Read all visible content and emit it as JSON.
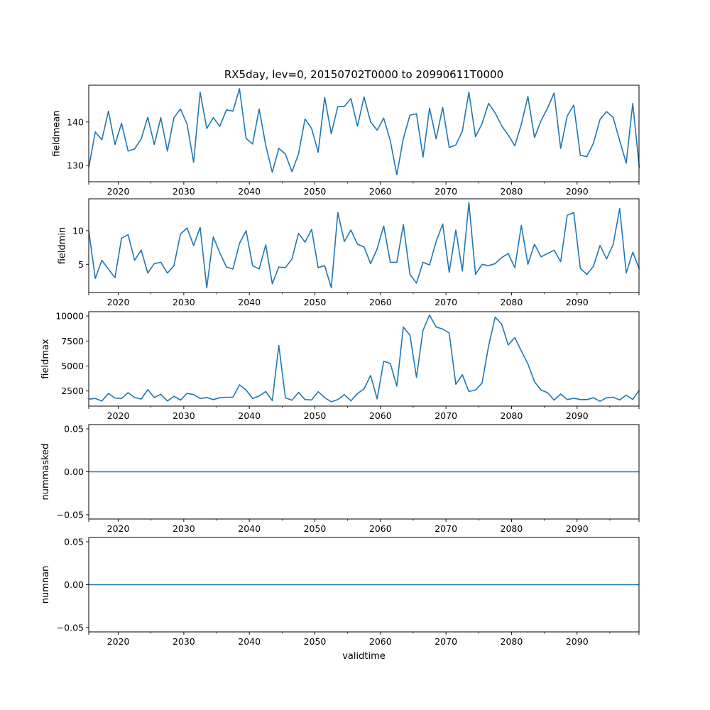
{
  "title": "RX5day, lev=0, 20150702T0000 to 20990611T0000",
  "chart_data": {
    "type": "line",
    "title": "RX5day, lev=0, 20150702T0000 to 20990611T0000",
    "xlabel": "validtime",
    "x_start_year": 2015.5,
    "x_step_years": 1,
    "xlim": [
      2015.5,
      2099.45
    ],
    "xticks": [
      2020,
      2030,
      2040,
      2050,
      2060,
      2070,
      2080,
      2090
    ],
    "xtick_labels": [
      "2020",
      "2030",
      "2040",
      "2050",
      "2060",
      "2070",
      "2080",
      "2090"
    ],
    "x_minor_ticks": [
      2025,
      2035,
      2045,
      2055,
      2065,
      2075,
      2085,
      2095
    ],
    "line_color": "#1f77b4",
    "panels": [
      {
        "ylabel": "fieldmean",
        "ylim": [
          126.2,
          148.5
        ],
        "yticks": [
          130,
          140
        ],
        "ytick_labels": [
          "130",
          "140"
        ],
        "values": [
          129.5,
          137.7,
          135.9,
          142.5,
          134.8,
          139.7,
          133.3,
          133.8,
          136.1,
          141.1,
          134.8,
          141.0,
          133.3,
          141.0,
          143.0,
          139.5,
          130.7,
          146.9,
          138.5,
          141.0,
          139.0,
          142.8,
          142.5,
          147.7,
          136.2,
          134.9,
          143.0,
          134.6,
          128.4,
          133.9,
          132.6,
          128.5,
          132.6,
          140.7,
          138.5,
          133.0,
          145.7,
          137.3,
          143.6,
          143.6,
          145.4,
          139.0,
          145.8,
          140.0,
          138.1,
          140.9,
          135.7,
          127.8,
          136.2,
          141.6,
          141.9,
          131.9,
          143.2,
          136.1,
          143.4,
          134.1,
          134.7,
          137.9,
          146.9,
          136.6,
          139.6,
          144.3,
          142.1,
          139.1,
          137.0,
          134.5,
          139.5,
          145.9,
          136.4,
          140.3,
          143.2,
          146.7,
          133.9,
          141.4,
          143.9,
          132.3,
          132.0,
          135.1,
          140.6,
          142.4,
          141.1,
          135.7,
          130.5,
          144.3,
          129.4
        ]
      },
      {
        "ylabel": "fieldmin",
        "ylim": [
          0.8,
          14.75
        ],
        "yticks": [
          5,
          10
        ],
        "ytick_labels": [
          "5",
          "10"
        ],
        "values": [
          10.0,
          2.9,
          5.6,
          4.3,
          3.0,
          8.9,
          9.4,
          5.6,
          7.1,
          3.7,
          5.1,
          5.3,
          3.7,
          4.8,
          9.5,
          10.4,
          7.8,
          10.5,
          1.5,
          9.1,
          6.7,
          4.6,
          4.3,
          8.1,
          10.0,
          4.8,
          4.3,
          7.9,
          2.1,
          4.6,
          4.5,
          5.8,
          9.6,
          8.3,
          10.2,
          4.5,
          4.8,
          1.5,
          12.7,
          8.4,
          10.1,
          8.0,
          7.6,
          5.1,
          7.3,
          10.7,
          5.3,
          5.3,
          10.9,
          3.5,
          2.2,
          5.3,
          4.9,
          8.4,
          11.0,
          3.8,
          10.1,
          4.0,
          14.2,
          3.5,
          5.0,
          4.8,
          5.1,
          6.0,
          6.6,
          4.5,
          10.8,
          5.0,
          8.0,
          6.1,
          6.6,
          7.1,
          5.4,
          12.3,
          12.7,
          4.4,
          3.5,
          4.7,
          7.8,
          5.8,
          7.9,
          13.3,
          3.7,
          6.8,
          4.3
        ]
      },
      {
        "ylabel": "fieldmax",
        "ylim": [
          990,
          10430
        ],
        "yticks": [
          2500,
          5000,
          7500,
          10000
        ],
        "ytick_labels": [
          "2500",
          "5000",
          "7500",
          "10000"
        ],
        "values": [
          1690,
          1760,
          1500,
          2260,
          1800,
          1760,
          2330,
          1850,
          1690,
          2640,
          1850,
          2170,
          1500,
          1970,
          1590,
          2260,
          2140,
          1760,
          1850,
          1640,
          1830,
          1880,
          1880,
          3120,
          2600,
          1760,
          2000,
          2450,
          1540,
          7050,
          1830,
          1570,
          2360,
          1640,
          1610,
          2430,
          1830,
          1420,
          1640,
          2140,
          1520,
          2240,
          2720,
          4050,
          1710,
          5470,
          5260,
          2980,
          8900,
          8080,
          3870,
          8560,
          10100,
          8900,
          8700,
          8300,
          3170,
          4130,
          2450,
          2600,
          3290,
          6980,
          9880,
          9190,
          7100,
          7840,
          6500,
          5210,
          3430,
          2600,
          2330,
          1590,
          2190,
          1640,
          1780,
          1640,
          1640,
          1830,
          1470,
          1830,
          1880,
          1610,
          2090,
          1660,
          2600
        ]
      },
      {
        "ylabel": "nummasked",
        "ylim": [
          -0.055,
          0.055
        ],
        "yticks": [
          -0.05,
          0,
          0.05
        ],
        "ytick_labels": [
          "−0.05",
          "0.00",
          "0.05"
        ],
        "constant_value": 0
      },
      {
        "ylabel": "numnan",
        "ylim": [
          -0.055,
          0.055
        ],
        "yticks": [
          -0.05,
          0,
          0.05
        ],
        "ytick_labels": [
          "−0.05",
          "0.00",
          "0.05"
        ],
        "constant_value": 0
      }
    ]
  }
}
